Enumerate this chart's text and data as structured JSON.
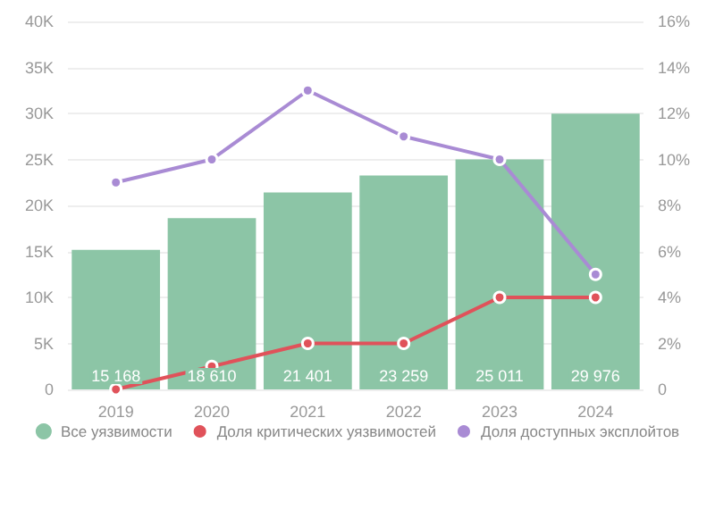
{
  "chart_data": {
    "type": "bar",
    "categories": [
      "2019",
      "2020",
      "2021",
      "2022",
      "2023",
      "2024"
    ],
    "series": [
      {
        "name": "Все уязвимости",
        "color": "#8cc5a6",
        "values": [
          15168,
          18610,
          21401,
          23259,
          25011,
          29976
        ],
        "value_labels": [
          "15 168",
          "18 610",
          "21 401",
          "23 259",
          "25 011",
          "29 976"
        ]
      },
      {
        "name": "Доля критических уязвимостей",
        "type": "line",
        "axis": "y2",
        "color": "#e0525a",
        "values": [
          0,
          1,
          2,
          2,
          4,
          4
        ]
      },
      {
        "name": "Доля доступных эксплойтов",
        "type": "line",
        "axis": "y2",
        "color": "#a98bd4",
        "values": [
          9,
          10,
          13,
          11,
          10,
          5
        ]
      }
    ],
    "ylim": [
      0,
      40000
    ],
    "yticks": [
      {
        "value": 0,
        "label": "0"
      },
      {
        "value": 5000,
        "label": "5K"
      },
      {
        "value": 10000,
        "label": "10K"
      },
      {
        "value": 15000,
        "label": "15K"
      },
      {
        "value": 20000,
        "label": "20K"
      },
      {
        "value": 25000,
        "label": "25K"
      },
      {
        "value": 30000,
        "label": "30K"
      },
      {
        "value": 35000,
        "label": "35K"
      },
      {
        "value": 40000,
        "label": "40K"
      }
    ],
    "y2lim": [
      0,
      16
    ],
    "y2ticks": [
      {
        "value": 0,
        "label": "0"
      },
      {
        "value": 2,
        "label": "2%"
      },
      {
        "value": 4,
        "label": "4%"
      },
      {
        "value": 6,
        "label": "6%"
      },
      {
        "value": 8,
        "label": "8%"
      },
      {
        "value": 10,
        "label": "10%"
      },
      {
        "value": 12,
        "label": "12%"
      },
      {
        "value": 14,
        "label": "14%"
      },
      {
        "value": 16,
        "label": "16%"
      }
    ],
    "grid": "y",
    "legend": "bottom",
    "marker": "circle"
  }
}
